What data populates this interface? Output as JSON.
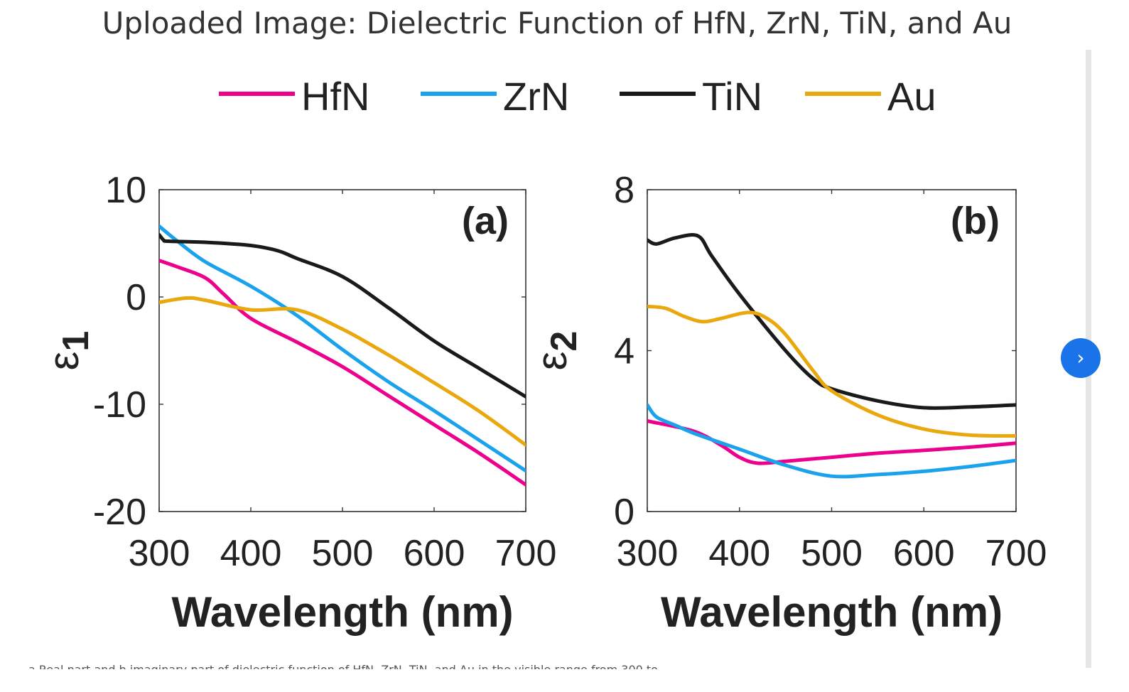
{
  "page": {
    "title": "Uploaded Image: Dielectric Function of HfN, ZrN, TiN, and Au",
    "caption": "a Real part and b imaginary part of dielectric function of HfN, ZrN, TiN, and Au in the visible range from 300 to",
    "next_icon": "chevron-right-icon",
    "next_glyph": "›"
  },
  "legend": [
    {
      "name": "HfN",
      "color": "#ec008c"
    },
    {
      "name": "ZrN",
      "color": "#1aa3ec"
    },
    {
      "name": "TiN",
      "color": "#1a1a1a"
    },
    {
      "name": "Au",
      "color": "#e8a80e"
    }
  ],
  "chart_data": [
    {
      "type": "line",
      "panel_label": "(a)",
      "xlabel": "Wavelength (nm)",
      "ylabel": "ε",
      "ylabel_sub": "1",
      "xlim": [
        300,
        700
      ],
      "ylim": [
        -20,
        10
      ],
      "xticks": [
        300,
        400,
        500,
        600,
        700
      ],
      "yticks": [
        -20,
        -10,
        0,
        10
      ],
      "grid": false,
      "series": [
        {
          "name": "HfN",
          "color": "#ec008c",
          "x": [
            300,
            320,
            350,
            370,
            400,
            450,
            500,
            550,
            600,
            650,
            700
          ],
          "y": [
            3.4,
            2.8,
            1.8,
            0.3,
            -2.0,
            -4.2,
            -6.5,
            -9.2,
            -11.9,
            -14.6,
            -17.5
          ]
        },
        {
          "name": "ZrN",
          "color": "#1aa3ec",
          "x": [
            300,
            320,
            350,
            400,
            450,
            500,
            550,
            600,
            650,
            700
          ],
          "y": [
            6.6,
            5.2,
            3.3,
            1.0,
            -1.7,
            -4.9,
            -7.9,
            -10.6,
            -13.4,
            -16.2
          ]
        },
        {
          "name": "TiN",
          "color": "#1a1a1a",
          "x": [
            300,
            305,
            310,
            350,
            400,
            430,
            450,
            500,
            550,
            600,
            650,
            700
          ],
          "y": [
            5.8,
            5.3,
            5.2,
            5.1,
            4.8,
            4.3,
            3.6,
            1.9,
            -1.0,
            -4.1,
            -6.7,
            -9.3
          ]
        },
        {
          "name": "Au",
          "color": "#e8a80e",
          "x": [
            300,
            330,
            350,
            400,
            450,
            500,
            550,
            600,
            650,
            700
          ],
          "y": [
            -0.5,
            -0.1,
            -0.3,
            -1.2,
            -1.2,
            -3.0,
            -5.4,
            -8.0,
            -10.7,
            -13.8
          ]
        }
      ]
    },
    {
      "type": "line",
      "panel_label": "(b)",
      "xlabel": "Wavelength (nm)",
      "ylabel": "ε",
      "ylabel_sub": "2",
      "xlim": [
        300,
        700
      ],
      "ylim": [
        0,
        8
      ],
      "xticks": [
        300,
        400,
        500,
        600,
        700
      ],
      "yticks": [
        0,
        4,
        8
      ],
      "grid": false,
      "series": [
        {
          "name": "HfN",
          "color": "#ec008c",
          "x": [
            300,
            350,
            380,
            400,
            420,
            450,
            500,
            550,
            600,
            650,
            700
          ],
          "y": [
            2.25,
            2.0,
            1.65,
            1.35,
            1.2,
            1.25,
            1.35,
            1.45,
            1.52,
            1.6,
            1.7
          ]
        },
        {
          "name": "ZrN",
          "color": "#1aa3ec",
          "x": [
            300,
            310,
            330,
            350,
            400,
            450,
            500,
            550,
            600,
            650,
            700
          ],
          "y": [
            2.65,
            2.35,
            2.15,
            1.95,
            1.55,
            1.15,
            0.88,
            0.92,
            1.0,
            1.12,
            1.27
          ]
        },
        {
          "name": "TiN",
          "color": "#1a1a1a",
          "x": [
            300,
            310,
            330,
            355,
            370,
            400,
            450,
            480,
            500,
            550,
            600,
            650,
            700
          ],
          "y": [
            6.75,
            6.65,
            6.8,
            6.85,
            6.35,
            5.4,
            4.0,
            3.3,
            3.05,
            2.75,
            2.58,
            2.6,
            2.65
          ]
        },
        {
          "name": "Au",
          "color": "#e8a80e",
          "x": [
            300,
            320,
            340,
            360,
            380,
            410,
            430,
            450,
            480,
            500,
            550,
            600,
            650,
            700
          ],
          "y": [
            5.1,
            5.05,
            4.85,
            4.72,
            4.8,
            4.95,
            4.8,
            4.4,
            3.5,
            3.0,
            2.4,
            2.05,
            1.9,
            1.88
          ]
        }
      ]
    }
  ]
}
